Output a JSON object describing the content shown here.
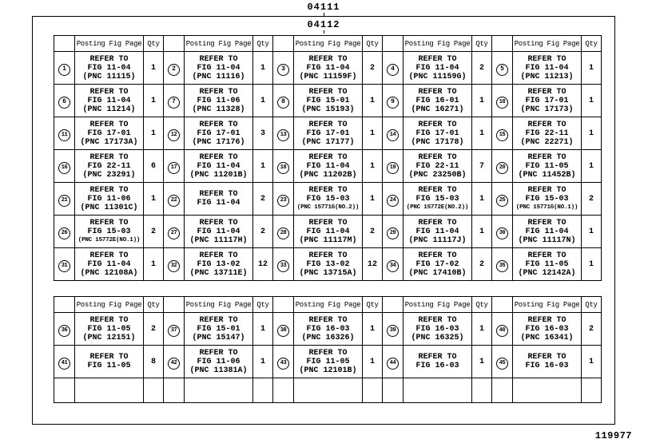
{
  "colors": {
    "ink": "#000000",
    "paper": "#ffffff"
  },
  "page": {
    "top_code": "04111",
    "inner_code": "04112",
    "sheet_number": "119977"
  },
  "labels": {
    "posting_fig_page": "Posting Fig Page",
    "qty": "Qty"
  },
  "tables": [
    {
      "name": "upper-posting",
      "empty_rows": 0,
      "rows": [
        [
          {
            "n": "1",
            "lines": [
              "REFER TO",
              "FIG 11-04",
              "(PNC 11115)"
            ],
            "qty": "1"
          },
          {
            "n": "2",
            "lines": [
              "REFER TO",
              "FIG 11-04",
              "(PNC 11116)"
            ],
            "qty": "1"
          },
          {
            "n": "3",
            "lines": [
              "REFER TO",
              "FIG 11-04",
              "(PNC 11159F)"
            ],
            "qty": "2"
          },
          {
            "n": "4",
            "lines": [
              "REFER TO",
              "FIG 11-04",
              "(PNC 11159G)"
            ],
            "qty": "2"
          },
          {
            "n": "5",
            "lines": [
              "REFER TO",
              "FIG 11-04",
              "(PNC 11213)"
            ],
            "qty": "1"
          }
        ],
        [
          {
            "n": "6",
            "lines": [
              "REFER TO",
              "FIG 11-04",
              "(PNC 11214)"
            ],
            "qty": "1"
          },
          {
            "n": "7",
            "lines": [
              "REFER TO",
              "FIG 11-06",
              "(PNC 11328)"
            ],
            "qty": "1"
          },
          {
            "n": "8",
            "lines": [
              "REFER TO",
              "FIG 15-01",
              "(PNC 15193)"
            ],
            "qty": "1"
          },
          {
            "n": "9",
            "lines": [
              "REFER TO",
              "FIG 16-01",
              "(PNC 16271)"
            ],
            "qty": "1"
          },
          {
            "n": "10",
            "lines": [
              "REFER TO",
              "FIG 17-01",
              "(PNC 17173)"
            ],
            "qty": "1"
          }
        ],
        [
          {
            "n": "11",
            "lines": [
              "REFER TO",
              "FIG 17-01",
              "(PNC 17173A)"
            ],
            "qty": "1"
          },
          {
            "n": "12",
            "lines": [
              "REFER TO",
              "FIG 17-01",
              "(PNC 17176)"
            ],
            "qty": "3"
          },
          {
            "n": "13",
            "lines": [
              "REFER TO",
              "FIG 17-01",
              "(PNC 17177)"
            ],
            "qty": "1"
          },
          {
            "n": "14",
            "lines": [
              "REFER TO",
              "FIG 17-01",
              "(PNC 17178)"
            ],
            "qty": "1"
          },
          {
            "n": "15",
            "lines": [
              "REFER TO",
              "FIG 22-11",
              "(PNC 22271)"
            ],
            "qty": "1"
          }
        ],
        [
          {
            "n": "16",
            "lines": [
              "REFER TO",
              "FIG 22-11",
              "(PNC 23291)"
            ],
            "qty": "6"
          },
          {
            "n": "17",
            "lines": [
              "REFER TO",
              "FIG 11-04",
              "(PNC 11201B)"
            ],
            "qty": "1"
          },
          {
            "n": "18",
            "lines": [
              "REFER TO",
              "FIG 11-04",
              "(PNC 11202B)"
            ],
            "qty": "1"
          },
          {
            "n": "19",
            "lines": [
              "REFER TO",
              "FIG 22-11",
              "(PNC 23250B)"
            ],
            "qty": "7"
          },
          {
            "n": "20",
            "lines": [
              "REFER TO",
              "FIG 11-05",
              "(PNC 11452B)"
            ],
            "qty": "1"
          }
        ],
        [
          {
            "n": "21",
            "lines": [
              "REFER TO",
              "FIG 11-06",
              "(PNC 11301C)"
            ],
            "qty": "1"
          },
          {
            "n": "22",
            "lines": [
              "REFER TO",
              "FIG 11-04"
            ],
            "qty": "2"
          },
          {
            "n": "23",
            "lines": [
              "REFER TO",
              "FIG 15-03",
              "(PNC 15771G(NO.2))"
            ],
            "qty": "1"
          },
          {
            "n": "24",
            "lines": [
              "REFER TO",
              "FIG 15-03",
              "(PNC 15772E(NO.2))"
            ],
            "qty": "1"
          },
          {
            "n": "25",
            "lines": [
              "REFER TO",
              "FIG 15-03",
              "(PNC 15771G(NO.1))"
            ],
            "qty": "2"
          }
        ],
        [
          {
            "n": "26",
            "lines": [
              "REFER TO",
              "FIG 15-03",
              "(PNC 15772E(NO.1))"
            ],
            "qty": "2"
          },
          {
            "n": "27",
            "lines": [
              "REFER TO",
              "FIG 11-04",
              "(PNC 11117H)"
            ],
            "qty": "2"
          },
          {
            "n": "28",
            "lines": [
              "REFER TO",
              "FIG 11-04",
              "(PNC 11117M)"
            ],
            "qty": "2"
          },
          {
            "n": "29",
            "lines": [
              "REFER TO",
              "FIG 11-04",
              "(PNC 11117J)"
            ],
            "qty": "1"
          },
          {
            "n": "30",
            "lines": [
              "REFER TO",
              "FIG 11-04",
              "(PNC 11117N)"
            ],
            "qty": "1"
          }
        ],
        [
          {
            "n": "31",
            "lines": [
              "REFER TO",
              "FIG 11-04",
              "(PNC 12108A)"
            ],
            "qty": "1"
          },
          {
            "n": "32",
            "lines": [
              "REFER TO",
              "FIG 13-02",
              "(PNC 13711E)"
            ],
            "qty": "12"
          },
          {
            "n": "33",
            "lines": [
              "REFER TO",
              "FIG 13-02",
              "(PNC 13715A)"
            ],
            "qty": "12"
          },
          {
            "n": "34",
            "lines": [
              "REFER TO",
              "FIG 17-02",
              "(PNC 17410B)"
            ],
            "qty": "2"
          },
          {
            "n": "35",
            "lines": [
              "REFER TO",
              "FIG 11-05",
              "(PNC 12142A)"
            ],
            "qty": "1"
          }
        ]
      ]
    },
    {
      "name": "lower-posting",
      "empty_rows": 1,
      "rows": [
        [
          {
            "n": "36",
            "lines": [
              "REFER TO",
              "FIG 11-05",
              "(PNC 12151)"
            ],
            "qty": "2"
          },
          {
            "n": "37",
            "lines": [
              "REFER TO",
              "FIG 15-01",
              "(PNC 15147)"
            ],
            "qty": "1"
          },
          {
            "n": "38",
            "lines": [
              "REFER TO",
              "FIG 16-03",
              "(PNC 16326)"
            ],
            "qty": "1"
          },
          {
            "n": "39",
            "lines": [
              "REFER TO",
              "FIG 16-03",
              "(PNC 16325)"
            ],
            "qty": "1"
          },
          {
            "n": "40",
            "lines": [
              "REFER TO",
              "FIG 16-03",
              "(PNC 16341)"
            ],
            "qty": "2"
          }
        ],
        [
          {
            "n": "41",
            "lines": [
              "REFER TO",
              "FIG 11-05"
            ],
            "qty": "8"
          },
          {
            "n": "42",
            "lines": [
              "REFER TO",
              "FIG 11-06",
              "(PNC 11381A)"
            ],
            "qty": "1"
          },
          {
            "n": "43",
            "lines": [
              "REFER TO",
              "FIG 11-05",
              "(PNC 12101B)"
            ],
            "qty": "1"
          },
          {
            "n": "44",
            "lines": [
              "REFER TO",
              "FIG 16-03"
            ],
            "qty": "1"
          },
          {
            "n": "45",
            "lines": [
              "REFER TO",
              "FIG 16-03"
            ],
            "qty": "1"
          }
        ]
      ]
    }
  ]
}
